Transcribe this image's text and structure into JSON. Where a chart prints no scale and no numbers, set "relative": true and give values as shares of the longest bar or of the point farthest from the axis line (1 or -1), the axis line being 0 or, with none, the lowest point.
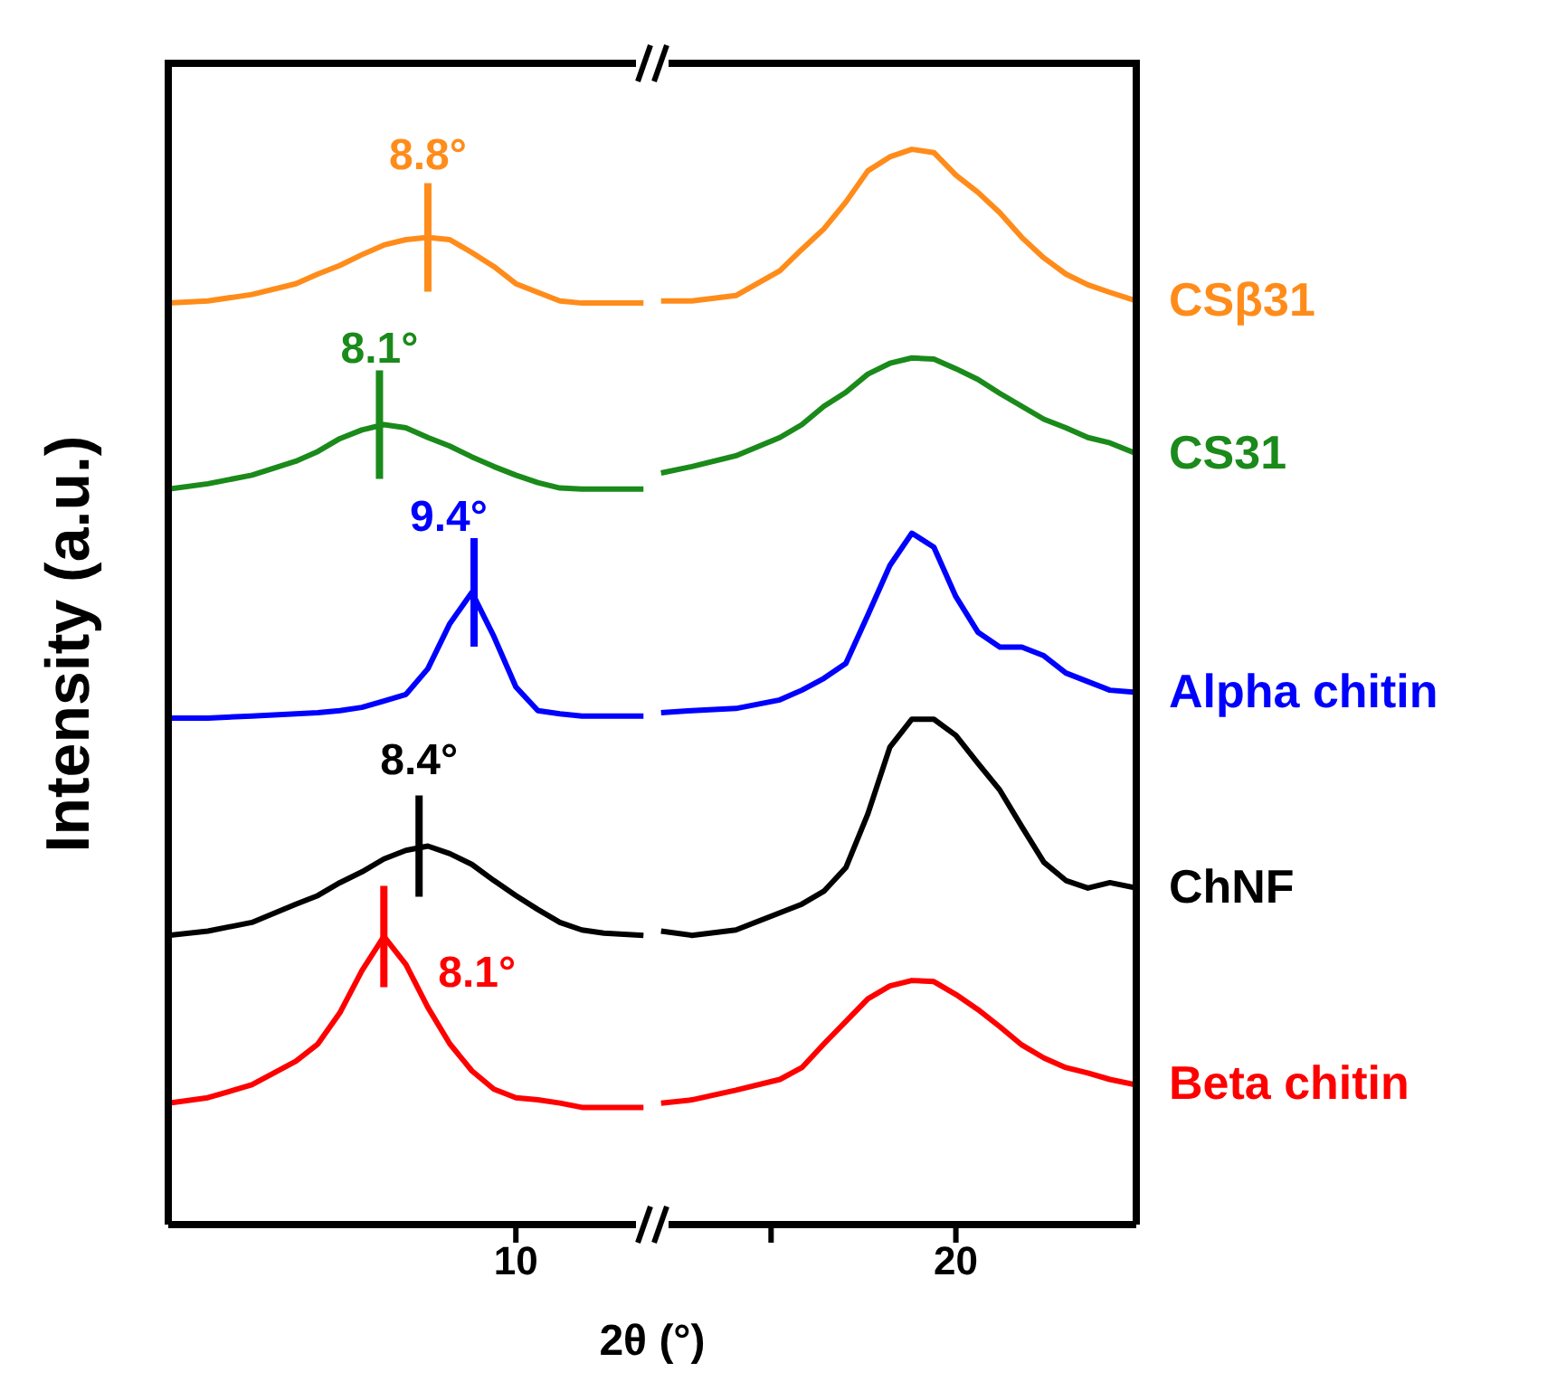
{
  "chart_data": {
    "type": "line",
    "relative": true,
    "xlabel": "2θ (°)",
    "ylabel": "Intensity (a.u.)",
    "x": [
      2.1,
      3,
      4,
      5,
      5.5,
      6,
      6.5,
      7,
      7.5,
      8,
      8.5,
      9,
      9.5,
      10,
      10.5,
      11,
      11.5,
      12,
      12.9,
      13.1,
      13.3,
      14,
      15,
      16,
      16.5,
      17,
      17.5,
      18,
      18.5,
      19,
      19.5,
      20,
      20.5,
      21,
      21.5,
      22,
      22.5,
      23,
      23.5,
      24.1
    ],
    "xlim": [
      2.1,
      24.1
    ],
    "xticks": [
      10,
      {
        "value": 15.8,
        "label": null
      },
      20
    ],
    "marker": "none",
    "series": [
      {
        "name": "CSβ31",
        "color": "#ff8c1a",
        "values": [
          0.857,
          0.859,
          0.865,
          0.875,
          0.884,
          0.892,
          0.902,
          0.911,
          0.916,
          0.918,
          0.916,
          0.904,
          0.891,
          0.875,
          0.867,
          0.859,
          0.857,
          0.857,
          0.857,
          null,
          0.859,
          0.859,
          0.864,
          0.887,
          0.907,
          0.926,
          0.951,
          0.98,
          0.993,
          1,
          0.997,
          0.976,
          0.96,
          0.941,
          0.918,
          0.899,
          0.884,
          0.874,
          0.867,
          0.859
        ]
      },
      {
        "name": "CS31",
        "color": "#1a8a1a",
        "values": [
          0.684,
          0.689,
          0.697,
          0.71,
          0.719,
          0.731,
          0.739,
          0.744,
          0.741,
          0.732,
          0.724,
          0.714,
          0.705,
          0.697,
          0.69,
          0.685,
          0.684,
          0.684,
          0.684,
          null,
          0.699,
          0.705,
          0.715,
          0.732,
          0.744,
          0.761,
          0.774,
          0.791,
          0.801,
          0.806,
          0.805,
          0.796,
          0.786,
          0.773,
          0.761,
          0.749,
          0.741,
          0.732,
          0.727,
          0.717
        ]
      },
      {
        "name": "Alpha chitin",
        "color": "#0000ff",
        "values": [
          0.471,
          0.471,
          0.473,
          0.475,
          0.476,
          0.478,
          0.481,
          0.487,
          0.493,
          0.517,
          0.559,
          0.588,
          0.547,
          0.5,
          0.478,
          0.475,
          0.473,
          0.473,
          0.473,
          null,
          0.476,
          0.478,
          0.48,
          0.488,
          0.497,
          0.508,
          0.522,
          0.567,
          0.613,
          0.643,
          0.63,
          0.584,
          0.551,
          0.537,
          0.537,
          0.529,
          0.513,
          0.505,
          0.497,
          0.495
        ]
      },
      {
        "name": "ChNF",
        "color": "#000000",
        "values": [
          0.269,
          0.273,
          0.281,
          0.298,
          0.306,
          0.318,
          0.328,
          0.34,
          0.348,
          0.352,
          0.345,
          0.335,
          0.32,
          0.306,
          0.293,
          0.281,
          0.274,
          0.271,
          0.269,
          null,
          0.273,
          0.269,
          0.274,
          0.29,
          0.298,
          0.31,
          0.332,
          0.382,
          0.444,
          0.47,
          0.47,
          0.455,
          0.429,
          0.404,
          0.37,
          0.337,
          0.32,
          0.313,
          0.318,
          0.313
        ]
      },
      {
        "name": "Beta chitin",
        "color": "#ff0000",
        "values": [
          0.113,
          0.118,
          0.13,
          0.152,
          0.168,
          0.197,
          0.236,
          0.268,
          0.242,
          0.202,
          0.168,
          0.143,
          0.126,
          0.118,
          0.116,
          0.113,
          0.109,
          0.109,
          0.109,
          null,
          0.113,
          0.116,
          0.125,
          0.135,
          0.146,
          0.168,
          0.189,
          0.21,
          0.222,
          0.227,
          0.226,
          0.214,
          0.2,
          0.184,
          0.167,
          0.155,
          0.146,
          0.141,
          0.135,
          0.13
        ]
      }
    ],
    "annotations": [
      {
        "text": "8.8°",
        "x": 8.0,
        "y": 0.918
      },
      {
        "text": "8.1°",
        "x": 6.9,
        "y": 0.744
      },
      {
        "text": "9.4°",
        "x": 9.05,
        "y": 0.588
      },
      {
        "text": "8.4°",
        "x": 7.8,
        "y": 0.352
      },
      {
        "text": "8.1°",
        "x": 7.0,
        "y": 0.268
      }
    ]
  }
}
